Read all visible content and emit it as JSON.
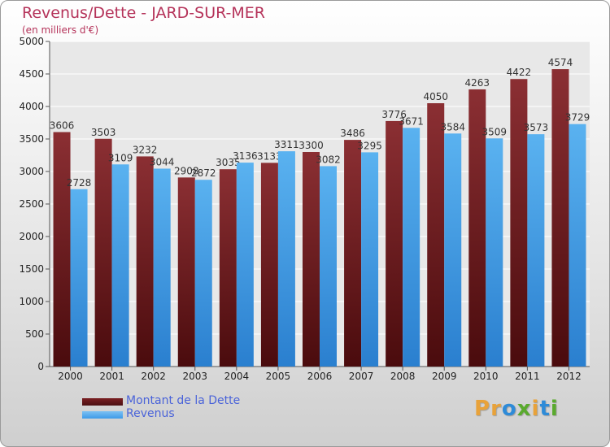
{
  "header": {
    "title": "Revenus/Dette - JARD-SUR-MER",
    "subtitle": "(en milliers d'€)"
  },
  "legend": {
    "items": [
      {
        "label": "Montant de la Dette",
        "color": "#7a1f22"
      },
      {
        "label": "Revenus",
        "color": "#3d9be8"
      }
    ]
  },
  "logo": {
    "text": "Proxiti",
    "colors": [
      "#e8a23a",
      "#e8a23a",
      "#2e8bd8",
      "#5aaa2e",
      "#e8a23a",
      "#2e8bd8",
      "#5aaa2e"
    ]
  },
  "chart_data": {
    "type": "bar",
    "categories": [
      "2000",
      "2001",
      "2002",
      "2003",
      "2004",
      "2005",
      "2006",
      "2007",
      "2008",
      "2009",
      "2010",
      "2011",
      "2012"
    ],
    "series": [
      {
        "name": "Montant de la Dette",
        "color": "#7a1f22",
        "values": [
          3606,
          3503,
          3232,
          2908,
          3035,
          3133,
          3300,
          3486,
          3776,
          4050,
          4263,
          4422,
          4574
        ]
      },
      {
        "name": "Revenus",
        "color": "#3d9be8",
        "values": [
          2728,
          3109,
          3044,
          2872,
          3136,
          3311,
          3082,
          3295,
          3671,
          3584,
          3509,
          3573,
          3729
        ]
      }
    ],
    "yticks": [
      "0",
      "500",
      "1000",
      "1500",
      "2000",
      "2500",
      "3000",
      "3500",
      "4000",
      "4500",
      "5000"
    ],
    "ylim": [
      0,
      5000
    ],
    "grid": true,
    "legend_position": "bottom-left"
  }
}
